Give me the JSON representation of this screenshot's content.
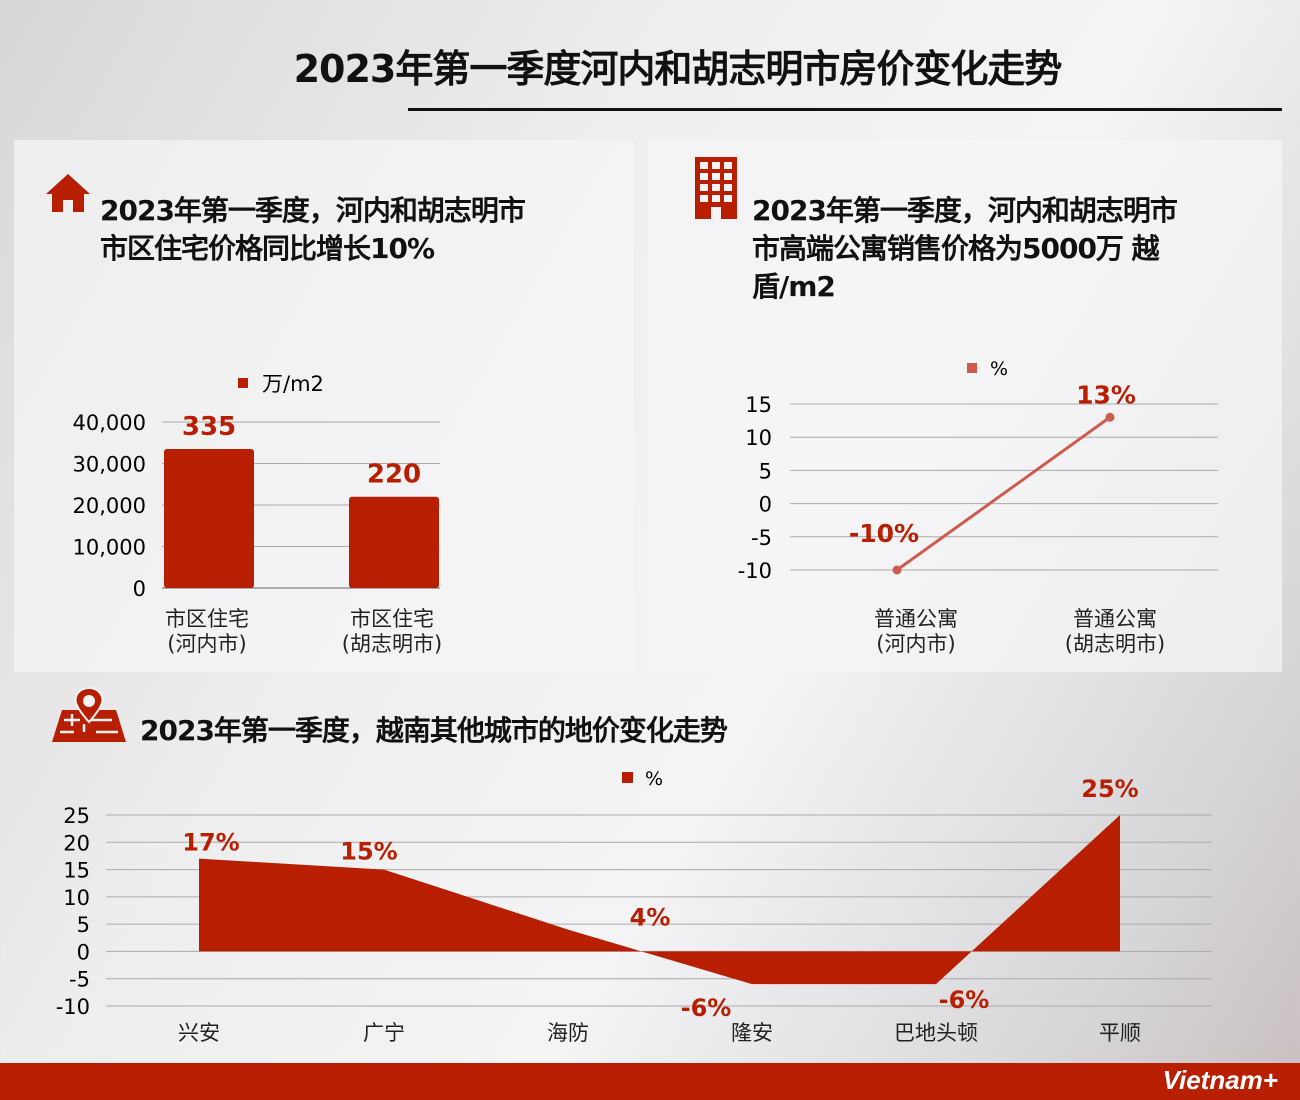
{
  "title": "2023年第一季度河内和胡志明市房价变化走势",
  "section1": {
    "heading_line1": "2023年第一季度，河内和胡志明市",
    "heading_line2": "市区住宅价格同比增长10%",
    "icon": "house-icon"
  },
  "section2": {
    "heading_line1": "2023年第一季度，河内和胡志明市",
    "heading_line2": "市高端公寓销售价格为5000万 越",
    "heading_line3": "盾/m2",
    "icon": "building-icon"
  },
  "section3": {
    "heading": "2023年第一季度，越南其他城市的地价变化走势",
    "icon": "map-pin-icon"
  },
  "footer": {
    "logo": "Vietnam+"
  },
  "colors": {
    "accent": "#b81e00",
    "line": "#cd5c4e"
  },
  "chart_data": [
    {
      "type": "bar",
      "legend": "万/m2",
      "legend_position": "top",
      "categories": [
        [
          "市区住宅",
          "(河内市)"
        ],
        [
          "市区住宅",
          "(胡志明市)"
        ]
      ],
      "values": [
        33500,
        22000
      ],
      "data_labels": [
        "335",
        "220"
      ],
      "yticks": [
        "0",
        "10,000",
        "20,000",
        "30,000",
        "40,000"
      ],
      "ylim": [
        0,
        40000
      ],
      "grid": true
    },
    {
      "type": "line",
      "legend": "%",
      "legend_position": "top",
      "categories": [
        [
          "普通公寓",
          "(河内市)"
        ],
        [
          "普通公寓",
          "(胡志明市)"
        ]
      ],
      "values": [
        -10,
        13
      ],
      "data_labels": [
        "-10%",
        "13%"
      ],
      "yticks": [
        "-10",
        "-5",
        "0",
        "5",
        "10",
        "15"
      ],
      "ylim": [
        -10,
        15
      ],
      "grid": true
    },
    {
      "type": "area",
      "legend": "%",
      "legend_position": "top",
      "categories": [
        "兴安",
        "广宁",
        "海防",
        "隆安",
        "巴地头顿",
        "平顺"
      ],
      "values": [
        17,
        15,
        4,
        -6,
        -6,
        25
      ],
      "data_labels": [
        "17%",
        "15%",
        "4%",
        "-6%",
        "-6%",
        "25%"
      ],
      "yticks": [
        "-10",
        "-5",
        "0",
        "5",
        "10",
        "15",
        "20",
        "25"
      ],
      "ylim": [
        -10,
        25
      ],
      "grid": true
    }
  ]
}
